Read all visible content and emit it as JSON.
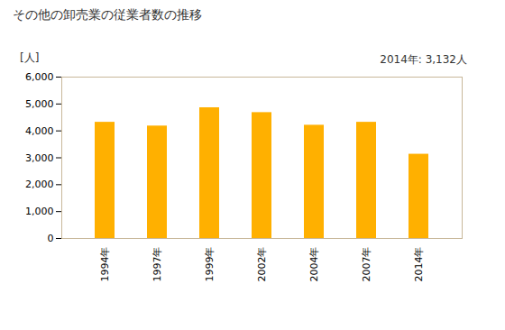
{
  "chart_data": {
    "type": "bar",
    "title": "その他の卸売業の従業者数の推移",
    "subtitle": "2014年: 3,132人",
    "y_label": "[人]",
    "categories": [
      "1994年",
      "1997年",
      "1999年",
      "2002年",
      "2004年",
      "2007年",
      "2014年"
    ],
    "values": [
      4320,
      4180,
      4860,
      4680,
      4210,
      4320,
      3132
    ],
    "color": "#ffb000",
    "ylim": [
      0,
      6000
    ],
    "yticks": [
      0,
      {
        "value": 1000,
        "label": "1,000"
      },
      {
        "value": 2000,
        "label": "2,000"
      },
      {
        "value": 3000,
        "label": "3,000"
      },
      {
        "value": 4000,
        "label": "4,000"
      },
      {
        "value": 5000,
        "label": "5,000"
      },
      {
        "value": 6000,
        "label": "6,000"
      }
    ],
    "grid": false
  }
}
